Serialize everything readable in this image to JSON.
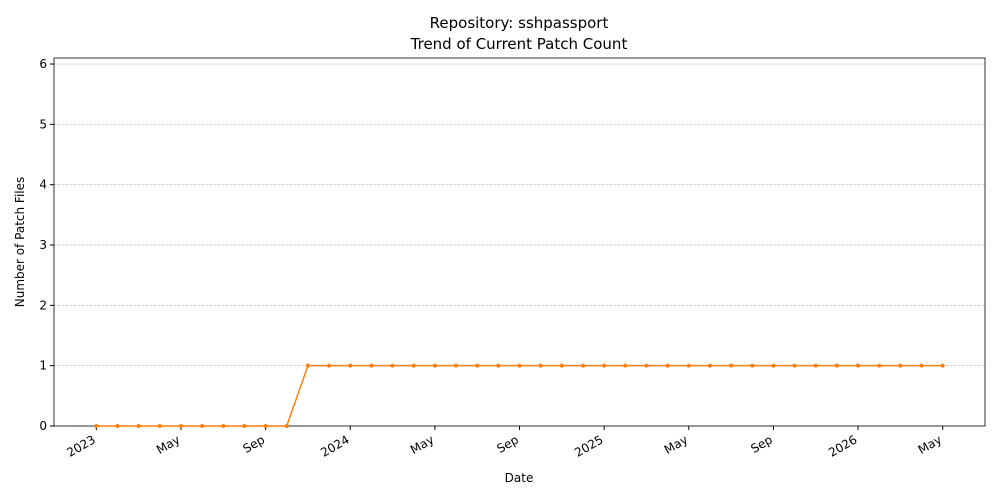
{
  "chart_data": {
    "type": "line",
    "title": "Repository: sshpassport",
    "subtitle": "Trend of Current Patch Count",
    "x_label": "Date",
    "y_label": "Number of Patch Files",
    "color": "#ff7f0e",
    "grid": true,
    "x": [
      "2023-01",
      "2023-02",
      "2023-03",
      "2023-04",
      "2023-05",
      "2023-06",
      "2023-07",
      "2023-08",
      "2023-09",
      "2023-10",
      "2023-11",
      "2023-12",
      "2024-01",
      "2024-02",
      "2024-03",
      "2024-04",
      "2024-05",
      "2024-06",
      "2024-07",
      "2024-08",
      "2024-09",
      "2024-10",
      "2024-11",
      "2024-12",
      "2025-01",
      "2025-02",
      "2025-03",
      "2025-04",
      "2025-05",
      "2025-06",
      "2025-07",
      "2025-08",
      "2025-09",
      "2025-10",
      "2025-11",
      "2025-12",
      "2026-01",
      "2026-02",
      "2026-03",
      "2026-04",
      "2026-05"
    ],
    "values": [
      0,
      0,
      0,
      0,
      0,
      0,
      0,
      0,
      0,
      0,
      1,
      1,
      1,
      1,
      1,
      1,
      1,
      1,
      1,
      1,
      1,
      1,
      1,
      1,
      1,
      1,
      1,
      1,
      1,
      1,
      1,
      1,
      1,
      1,
      1,
      1,
      1,
      1,
      1,
      1,
      1
    ],
    "xlim": [
      "2022-11",
      "2026-07"
    ],
    "xticks": [
      {
        "value": "2023-01",
        "label": "2023"
      },
      {
        "value": "2023-05",
        "label": "May"
      },
      {
        "value": "2023-09",
        "label": "Sep"
      },
      {
        "value": "2024-01",
        "label": "2024"
      },
      {
        "value": "2024-05",
        "label": "May"
      },
      {
        "value": "2024-09",
        "label": "Sep"
      },
      {
        "value": "2025-01",
        "label": "2025"
      },
      {
        "value": "2025-05",
        "label": "May"
      },
      {
        "value": "2025-09",
        "label": "Sep"
      },
      {
        "value": "2026-01",
        "label": "2026"
      },
      {
        "value": "2026-05",
        "label": "May"
      }
    ],
    "ylim": [
      0,
      6.1
    ],
    "yticks": [
      0,
      1,
      2,
      3,
      4,
      5,
      6
    ]
  }
}
